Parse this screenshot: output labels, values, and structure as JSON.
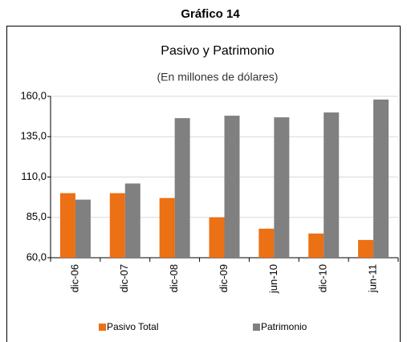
{
  "chart_data": {
    "type": "bar",
    "figure_label": "Gráfico 14",
    "title": "Pasivo y Patrimonio",
    "subtitle": "(En millones de dólares)",
    "categories": [
      "dic-06",
      "dic-07",
      "dic-08",
      "dic-09",
      "jun-10",
      "dic-10",
      "jun-11"
    ],
    "series": [
      {
        "name": "Pasivo Total",
        "color": "#ec7014",
        "values": [
          100,
          100,
          97,
          85,
          78,
          75,
          71
        ]
      },
      {
        "name": "Patrimonio",
        "color": "#808080",
        "values": [
          96,
          106,
          146.5,
          148,
          147,
          150,
          158
        ]
      }
    ],
    "ylim": [
      60,
      160
    ],
    "yticks": [
      {
        "value": 60,
        "label": "60,0"
      },
      {
        "value": 85,
        "label": "85,0"
      },
      {
        "value": 110,
        "label": "110,0"
      },
      {
        "value": 135,
        "label": "135,0"
      },
      {
        "value": 160,
        "label": "160,0"
      }
    ],
    "grid": true,
    "legend": "bottom"
  }
}
